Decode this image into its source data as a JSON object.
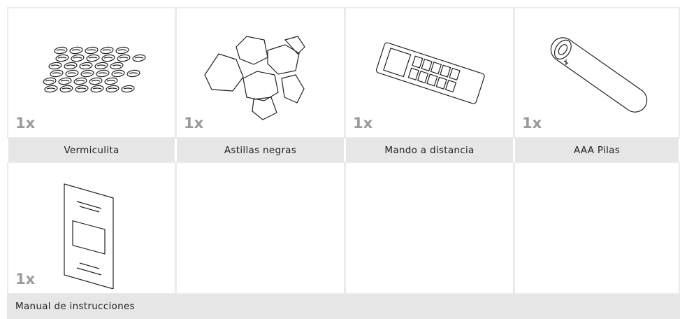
{
  "items": [
    {
      "quantity": "1x",
      "label": "Vermiculita"
    },
    {
      "quantity": "1x",
      "label": "Astillas negras"
    },
    {
      "quantity": "1x",
      "label": "Mando a distancia"
    },
    {
      "quantity": "1x",
      "label": "AAA Pilas"
    },
    {
      "quantity": "1x",
      "label": "Manual de instrucciones"
    }
  ]
}
